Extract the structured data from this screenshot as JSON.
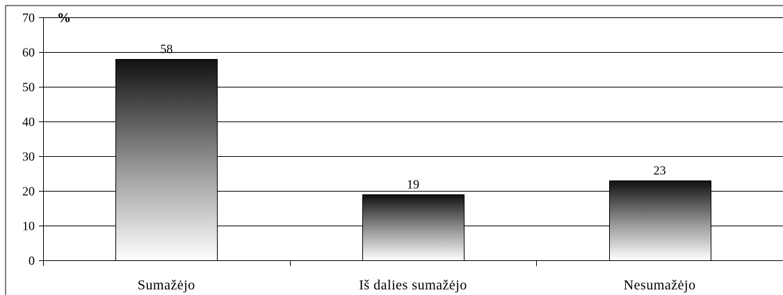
{
  "chart_data": {
    "type": "bar",
    "categories": [
      "Sumažėjo",
      "Iš dalies sumažėjo",
      "Nesumažėjo"
    ],
    "values": [
      58,
      19,
      23
    ],
    "title": "",
    "xlabel": "",
    "ylabel": "%",
    "ylim": [
      0,
      70
    ],
    "yticks": [
      0,
      10,
      20,
      30,
      40,
      50,
      60,
      70
    ],
    "grid": true,
    "legend": "none",
    "colors": {
      "bar_top": "#111111",
      "bar_bottom": "#ffffff",
      "grid": "#000000"
    }
  }
}
